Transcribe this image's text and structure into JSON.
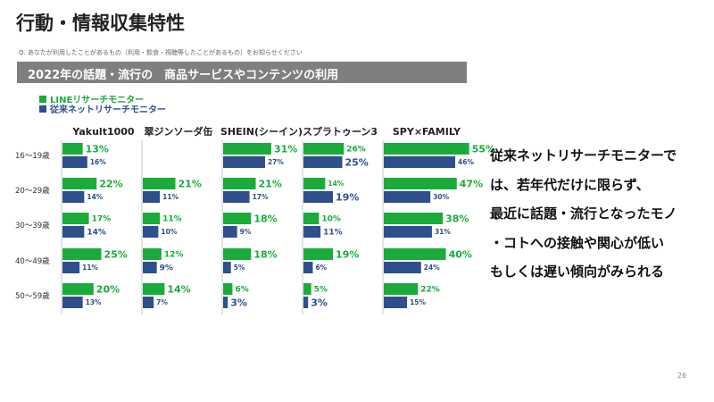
{
  "title": "行動・情報収集特性",
  "question": "Q. あなたが利用したことがあるもの（利用・飲食・視聴等したことがあるもの）をお知らせください",
  "banner": "2022年の話題・流行の　商品サービスやコンテンツの利用",
  "colors": {
    "line": "#1aab3b",
    "traditional": "#2e4f8c",
    "banner": "#7f7f7f"
  },
  "chart_data": {
    "type": "bar",
    "orientation": "horizontal",
    "unit": "%",
    "legend": [
      "LINEリサーチモニター",
      "従来ネットリサーチモニター"
    ],
    "legend_position": "top-left",
    "categories": [
      "16～19歳",
      "20～29歳",
      "30～39歳",
      "40～49歳",
      "50～59歳"
    ],
    "products": [
      {
        "name": "Yakult1000",
        "series": [
          {
            "name": "LINEリサーチモニター",
            "values": [
              13,
              22,
              17,
              25,
              20
            ]
          },
          {
            "name": "従来ネットリサーチモニター",
            "values": [
              16,
              14,
              14,
              11,
              13
            ]
          }
        ]
      },
      {
        "name": "翠ジンソーダ缶",
        "series": [
          {
            "name": "LINEリサーチモニター",
            "values": [
              null,
              21,
              11,
              12,
              14
            ]
          },
          {
            "name": "従来ネットリサーチモニター",
            "values": [
              null,
              11,
              10,
              9,
              7
            ]
          }
        ]
      },
      {
        "name": "SHEIN(シーイン)",
        "series": [
          {
            "name": "LINEリサーチモニター",
            "values": [
              31,
              21,
              18,
              18,
              6
            ]
          },
          {
            "name": "従来ネットリサーチモニター",
            "values": [
              27,
              17,
              9,
              5,
              3
            ]
          }
        ]
      },
      {
        "name": "スプラトゥーン3",
        "series": [
          {
            "name": "LINEリサーチモニター",
            "values": [
              26,
              14,
              10,
              19,
              5
            ]
          },
          {
            "name": "従来ネットリサーチモニター",
            "values": [
              25,
              19,
              11,
              6,
              3
            ]
          }
        ]
      },
      {
        "name": "SPY×FAMILY",
        "series": [
          {
            "name": "LINEリサーチモニター",
            "values": [
              55,
              47,
              38,
              40,
              22
            ]
          },
          {
            "name": "従来ネットリサーチモニター",
            "values": [
              46,
              30,
              31,
              24,
              15
            ]
          }
        ]
      }
    ],
    "label_styles": {
      "Yakult1000": [
        [
          "big",
          "small"
        ],
        [
          "big",
          "small"
        ],
        [
          "mid",
          "mid"
        ],
        [
          "big",
          "small"
        ],
        [
          "big",
          "small"
        ]
      ],
      "翠ジンソーダ缶": [
        null,
        [
          "big",
          "small"
        ],
        [
          "mid",
          "small"
        ],
        [
          "mid",
          "mid"
        ],
        [
          "big",
          "small"
        ]
      ],
      "SHEIN(シーイン)": [
        [
          "big",
          "small"
        ],
        [
          "big",
          "small"
        ],
        [
          "big",
          "small"
        ],
        [
          "big",
          "small"
        ],
        [
          "mid",
          "big"
        ]
      ],
      "スプラトゥーン3": [
        [
          "mid",
          "big"
        ],
        [
          "small",
          "big"
        ],
        [
          "mid",
          "mid"
        ],
        [
          "big",
          "small"
        ],
        [
          "mid",
          "big"
        ]
      ],
      "SPY×FAMILY": [
        [
          "big",
          "small"
        ],
        [
          "big",
          "small"
        ],
        [
          "big",
          "small"
        ],
        [
          "big",
          "small"
        ],
        [
          "mid",
          "small"
        ]
      ]
    }
  },
  "takeaway": [
    "従来ネットリサーチモニターで",
    "は、若年代だけに限らず、",
    "最近に話題・流行となったモノ",
    "・コトへの接触や関心が低い",
    "もしくは遅い傾向がみられる"
  ],
  "page_number": "26"
}
